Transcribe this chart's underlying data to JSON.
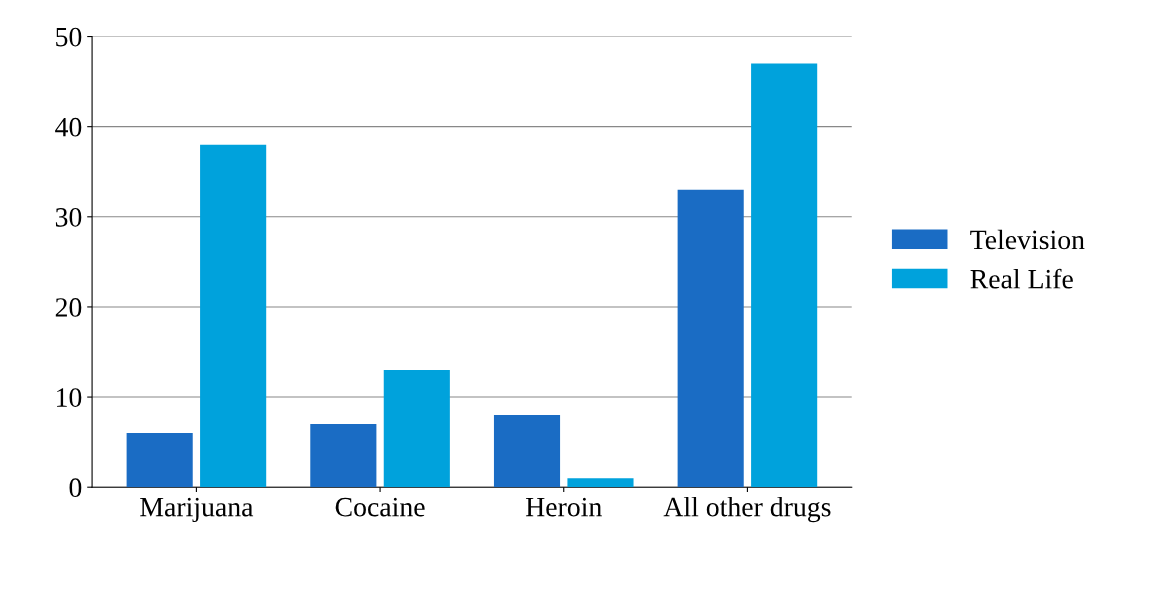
{
  "chart_data": {
    "type": "bar",
    "categories": [
      "Marijuana",
      "Cocaine",
      "Heroin",
      "All other drugs"
    ],
    "series": [
      {
        "name": "Television",
        "color": "#1a6cc4",
        "values": [
          6,
          7,
          8,
          33
        ]
      },
      {
        "name": "Real Life",
        "color": "#00a2dc",
        "values": [
          38,
          13,
          1,
          47
        ]
      }
    ],
    "ylim": [
      0,
      50
    ],
    "yticks": [
      0,
      10,
      20,
      30,
      40,
      50
    ],
    "grid": "y",
    "legend": "right"
  }
}
